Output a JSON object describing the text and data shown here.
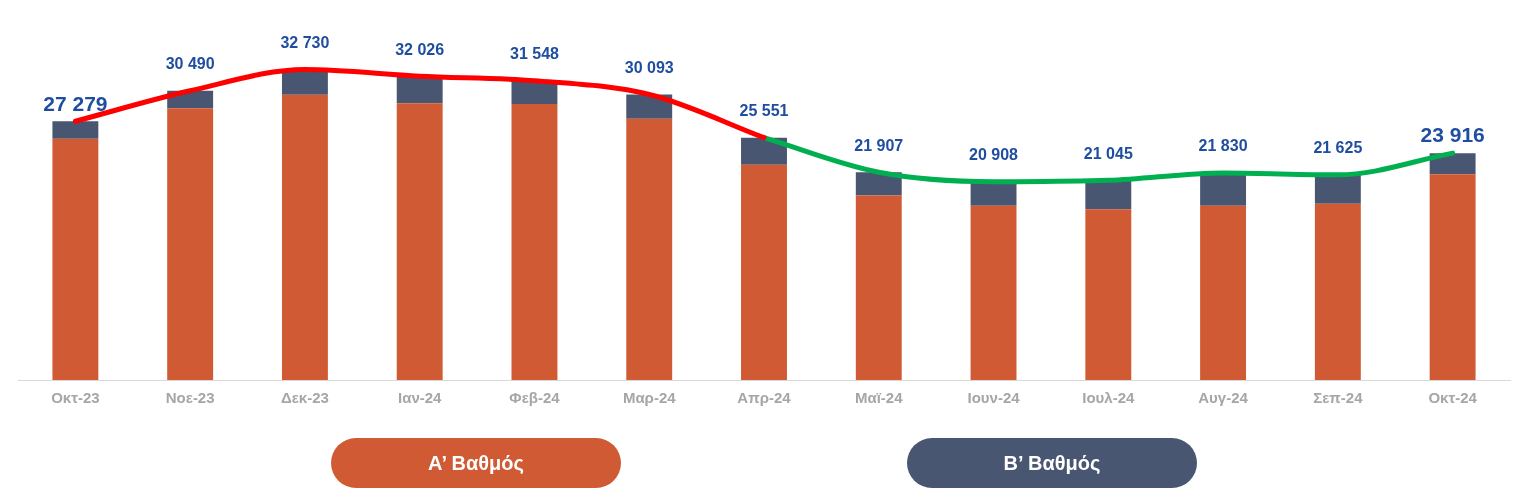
{
  "chart_data": {
    "type": "bar",
    "stacked": true,
    "categories": [
      "Οκτ-23",
      "Νοε-23",
      "Δεκ-23",
      "Ιαν-24",
      "Φεβ-24",
      "Μαρ-24",
      "Απρ-24",
      "Μαϊ-24",
      "Ιουν-24",
      "Ιουλ-24",
      "Αυγ-24",
      "Σεπ-24",
      "Οκτ-24"
    ],
    "series": [
      {
        "name": "Α’ Βαθμός",
        "color": "#d05a33",
        "values": [
          25440,
          28650,
          30080,
          29170,
          29100,
          27540,
          22690,
          19460,
          18360,
          17990,
          18360,
          18570,
          21680
        ]
      },
      {
        "name": "Β’ Βαθμός",
        "color": "#485672",
        "values": [
          1839,
          1840,
          2650,
          2856,
          2448,
          2553,
          2861,
          2447,
          2548,
          3055,
          3470,
          3055,
          2236
        ]
      },
      {
        "type": "line",
        "color": "#ff0000",
        "values": [
          27279,
          30490,
          32730,
          32026,
          31548,
          30093,
          25551,
          null,
          null,
          null,
          null,
          null,
          null
        ],
        "value_labels": [
          "27 279",
          "30 490",
          "32 730",
          "32 026",
          "31 548",
          "30 093",
          "25 551",
          null,
          null,
          null,
          null,
          null,
          null
        ]
      },
      {
        "type": "line",
        "color": "#00b050",
        "values": [
          null,
          null,
          null,
          null,
          null,
          null,
          25551,
          21907,
          20908,
          21045,
          21830,
          21625,
          23916
        ],
        "value_labels": [
          null,
          null,
          null,
          null,
          null,
          null,
          null,
          "21 907",
          "20 908",
          "21 045",
          "21 830",
          "21 625",
          "23 916"
        ]
      }
    ],
    "tick_labels": "x",
    "grid": false,
    "legend": "bottom"
  }
}
